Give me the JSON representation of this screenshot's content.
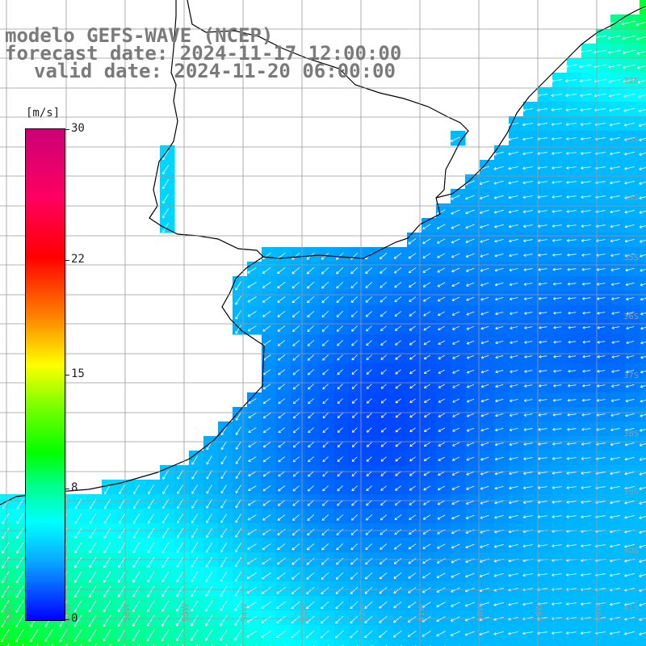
{
  "header": {
    "model_line": "modelo GEFS-WAVE (NCEP)",
    "forecast_line": "forecast date: 2024-11-17 12:00:00",
    "valid_line": "valid date: 2024-11-20 06:00:00"
  },
  "colorbar": {
    "unit": "[m/s]",
    "labels": [
      "30",
      "22",
      "15",
      "8",
      "0"
    ],
    "levels": [
      30,
      22,
      15,
      8,
      0
    ],
    "colors": [
      "#cc0077",
      "#ff0000",
      "#ffff00",
      "#00ffff",
      "#0000ff"
    ]
  },
  "map": {
    "lat_labels": [
      "32S",
      "33S",
      "34S",
      "35S",
      "36S",
      "37S",
      "38S",
      "39S",
      "40S",
      "41S"
    ],
    "lon_labels": [
      "58W",
      "57W",
      "56W",
      "55W",
      "54W",
      "53W",
      "52W",
      "51W",
      "50W",
      "49W",
      "48W"
    ],
    "field": "wind speed with direction arrows",
    "palette": {
      "land": "#ffffff",
      "coast": "#000000",
      "grid": "#9a9a9a",
      "arrows": "#ffffff"
    }
  }
}
